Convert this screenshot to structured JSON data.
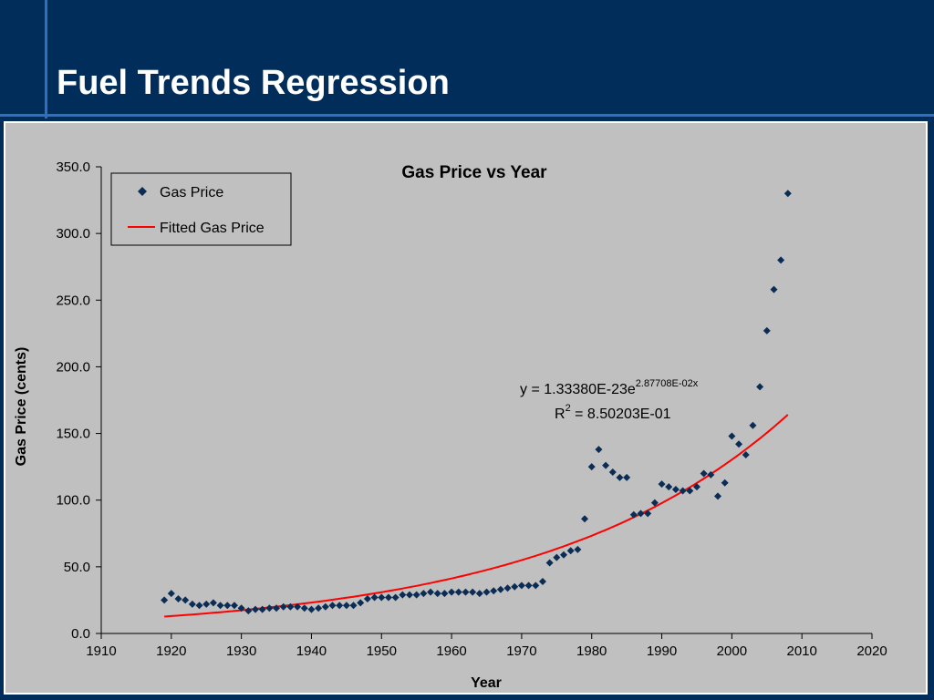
{
  "slide": {
    "title": "Fuel Trends Regression"
  },
  "colors": {
    "background": "#002d5a",
    "accent_line": "#2f6fbf",
    "plot_bg": "#c0c0c0",
    "marker": "#0b2d55",
    "fit_line": "#ff0000"
  },
  "chart_data": {
    "type": "scatter",
    "title": "Gas Price vs Year",
    "xlabel": "Year",
    "ylabel": "Gas Price (cents)",
    "xlim": [
      1910,
      2020
    ],
    "ylim": [
      0,
      350
    ],
    "xticks": [
      "1910",
      "1920",
      "1930",
      "1940",
      "1950",
      "1960",
      "1970",
      "1980",
      "1990",
      "2000",
      "2010",
      "2020"
    ],
    "yticks": [
      "0.0",
      "50.0",
      "100.0",
      "150.0",
      "200.0",
      "250.0",
      "300.0",
      "350.0"
    ],
    "grid": false,
    "legend_position": "top-left",
    "series": [
      {
        "name": "Gas Price",
        "marker": "diamond",
        "x": [
          1919,
          1920,
          1921,
          1922,
          1923,
          1924,
          1925,
          1926,
          1927,
          1928,
          1929,
          1930,
          1931,
          1932,
          1933,
          1934,
          1935,
          1936,
          1937,
          1938,
          1939,
          1940,
          1941,
          1942,
          1943,
          1944,
          1945,
          1946,
          1947,
          1948,
          1949,
          1950,
          1951,
          1952,
          1953,
          1954,
          1955,
          1956,
          1957,
          1958,
          1959,
          1960,
          1961,
          1962,
          1963,
          1964,
          1965,
          1966,
          1967,
          1968,
          1969,
          1970,
          1971,
          1972,
          1973,
          1974,
          1975,
          1976,
          1977,
          1978,
          1979,
          1980,
          1981,
          1982,
          1983,
          1984,
          1985,
          1986,
          1987,
          1988,
          1989,
          1990,
          1991,
          1992,
          1993,
          1994,
          1995,
          1996,
          1997,
          1998,
          1999,
          2000,
          2001,
          2002,
          2003,
          2004,
          2005,
          2006,
          2007,
          2008
        ],
        "y": [
          25,
          30,
          26,
          25,
          22,
          21,
          22,
          23,
          21,
          21,
          21,
          19,
          17,
          18,
          18,
          19,
          19,
          20,
          20,
          20,
          19,
          18,
          19,
          20,
          21,
          21,
          21,
          21,
          23,
          26,
          27,
          27,
          27,
          27,
          29,
          29,
          29,
          30,
          31,
          30,
          30,
          31,
          31,
          31,
          31,
          30,
          31,
          32,
          33,
          34,
          35,
          36,
          36,
          36,
          39,
          53,
          57,
          59,
          62,
          63,
          86,
          125,
          138,
          126,
          121,
          117,
          117,
          89,
          90,
          90,
          98,
          112,
          110,
          108,
          107,
          107,
          110,
          120,
          119,
          103,
          113,
          148,
          142,
          134,
          156,
          185,
          227,
          258,
          280,
          330
        ]
      },
      {
        "name": "Fitted Gas Price",
        "type": "line",
        "equation": "y = 1.33380E-23e^(2.87708E-02x)",
        "fit": {
          "a": 1.3338e-23,
          "b": 0.0287708
        },
        "x_range": [
          1919,
          2008
        ]
      }
    ],
    "annotations": {
      "equation_main": "y = 1.33380E-23e",
      "equation_exponent": "2.87708E-02x",
      "r2_prefix": "R",
      "r2_sup": "2",
      "r2_value": " = 8.50203E-01"
    }
  }
}
